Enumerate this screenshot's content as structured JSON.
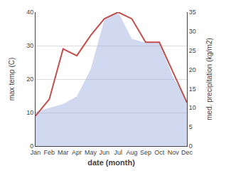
{
  "chart_data": {
    "type": "line",
    "xlabel": "date (month)",
    "ylabel": "max temp (C)",
    "y2label": "med. precipitation (kg/m2)",
    "categories": [
      "Jan",
      "Feb",
      "Mar",
      "Apr",
      "May",
      "Jun",
      "Jul",
      "Aug",
      "Sep",
      "Oct",
      "Nov",
      "Dec"
    ],
    "series": [
      {
        "type": "area",
        "axis": "y2",
        "color": "#99aadd",
        "values": [
          9,
          10,
          11,
          13,
          20,
          33,
          35,
          28,
          27,
          27,
          18,
          12
        ]
      },
      {
        "type": "line",
        "axis": "y",
        "color": "#c0504d",
        "values": [
          9,
          14,
          29,
          27,
          33,
          38,
          40,
          38,
          31,
          31,
          22,
          13
        ]
      }
    ],
    "ylim": [
      0,
      40
    ],
    "yticks": [
      0,
      10,
      20,
      30,
      40
    ],
    "y2lim": [
      0,
      35
    ],
    "y2ticks": [
      0,
      5,
      10,
      15,
      20,
      25,
      30,
      35
    ],
    "grid": true
  }
}
